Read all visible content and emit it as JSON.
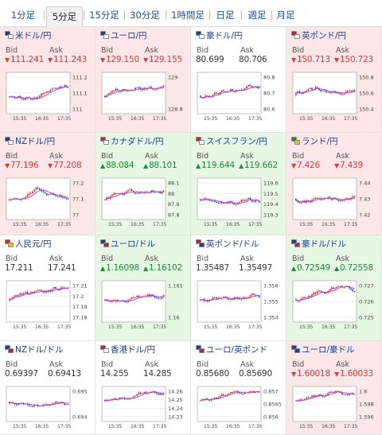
{
  "tabs": [
    "1分足",
    "5分足",
    "15分足",
    "30分足",
    "1時間足",
    "日足",
    "週足",
    "月足"
  ],
  "active_tab": "5分足",
  "labels": {
    "bid": "Bid",
    "ask": "Ask"
  },
  "colors": {
    "up_bg": "#e6f7e4",
    "down_bg": "#fbe7e8",
    "flat_bg": "#ffffff",
    "up_candle": "#e23b3b",
    "down_candle": "#2a56c6",
    "ma_line": "#c03bd0"
  },
  "pairs": [
    {
      "name": "米ドル/円",
      "trend": "down",
      "bid": "111.241",
      "ask": "111.243",
      "flag_colors": [
        "#1c3f8f",
        "#ffffff"
      ],
      "chart_data": {
        "type": "candlestick",
        "y_ticks": [
          "111.2",
          "111.1",
          "111"
        ],
        "x_ticks": [
          "15:35",
          "16:35",
          "17:35"
        ],
        "ylim": [
          110.96,
          111.26
        ]
      }
    },
    {
      "name": "ユーロ/円",
      "trend": "down",
      "bid": "129.150",
      "ask": "129.155",
      "flag_colors": [
        "#1c3f8f",
        "#ffffff"
      ],
      "chart_data": {
        "type": "candlestick",
        "y_ticks": [
          "129",
          "128.8"
        ],
        "x_ticks": [
          "15:35",
          "16:35",
          "17:35"
        ],
        "ylim": [
          128.72,
          129.2
        ]
      }
    },
    {
      "name": "豪ドル/円",
      "trend": "flat",
      "bid": "80.699",
      "ask": "80.706",
      "flag_colors": [
        "#1c3f8f",
        "#ffffff"
      ],
      "chart_data": {
        "type": "candlestick",
        "y_ticks": [
          "80.8",
          "80.7",
          "80.6"
        ],
        "x_ticks": [
          "15:35",
          "16:35",
          "17:35"
        ],
        "ylim": [
          80.56,
          80.84
        ]
      }
    },
    {
      "name": "英ポンド/円",
      "trend": "down",
      "bid": "150.713",
      "ask": "150.723",
      "flag_colors": [
        "#c0243a",
        "#ffffff"
      ],
      "chart_data": {
        "type": "candlestick",
        "y_ticks": [
          "150.8",
          "150.6",
          "150.4"
        ],
        "x_ticks": [
          "15:35",
          "16:35",
          "17:35"
        ],
        "ylim": [
          150.3,
          150.88
        ]
      }
    },
    {
      "name": "NZドル/円",
      "trend": "down",
      "bid": "77.196",
      "ask": "77.208",
      "flag_colors": [
        "#1c3f8f",
        "#ffffff"
      ],
      "arrows": true,
      "chart_data": {
        "type": "candlestick",
        "y_ticks": [
          "77.2",
          "77.1",
          "77"
        ],
        "x_ticks": [
          "15:35",
          "16:35",
          "17:35"
        ],
        "ylim": [
          76.96,
          77.3
        ]
      }
    },
    {
      "name": "カナダドル/円",
      "trend": "up",
      "bid": "88.084",
      "ask": "88.101",
      "flag_colors": [
        "#d0252b",
        "#ffffff"
      ],
      "arrows": true,
      "chart_data": {
        "type": "candlestick",
        "y_ticks": [
          "88.1",
          "88",
          "87.9",
          "87.8"
        ],
        "x_ticks": [
          "15:35",
          "16:35",
          "17:35"
        ],
        "ylim": [
          87.76,
          88.14
        ]
      }
    },
    {
      "name": "スイスフラン/円",
      "trend": "up",
      "bid": "119.644",
      "ask": "119.662",
      "flag_colors": [
        "#d0252b",
        "#ffffff"
      ],
      "arrows": true,
      "chart_data": {
        "type": "candlestick",
        "y_ticks": [
          "119.6",
          "119.5",
          "119.4",
          "119.3"
        ],
        "x_ticks": [
          "15:35",
          "16:35",
          "17:35"
        ],
        "ylim": [
          119.26,
          119.7
        ]
      }
    },
    {
      "name": "ランド/円",
      "trend": "down",
      "bid": "7.426",
      "ask": "7.439",
      "flag_colors": [
        "#1e8c34",
        "#f2c200"
      ],
      "arrows": true,
      "chart_data": {
        "type": "candlestick",
        "y_ticks": [
          "7.44",
          "7.43",
          "7.42"
        ],
        "x_ticks": [
          "15:35",
          "16:35",
          "17:35"
        ],
        "ylim": [
          7.414,
          7.446
        ]
      }
    },
    {
      "name": "人民元/円",
      "trend": "flat",
      "bid": "17.211",
      "ask": "17.241",
      "flag_colors": [
        "#d0252b",
        "#f2c200"
      ],
      "chart_data": {
        "type": "candlestick",
        "y_ticks": [
          "17.21",
          "17.2",
          "17.19",
          "17.18"
        ],
        "x_ticks": [
          "15:35",
          "16:35",
          "17:35"
        ],
        "ylim": [
          17.176,
          17.216
        ]
      }
    },
    {
      "name": "ユーロ/ドル",
      "trend": "up",
      "bid": "1.16098",
      "ask": "1.16102",
      "flag_colors": [
        "#1c3f8f",
        "#c0243a"
      ],
      "arrows": true,
      "chart_data": {
        "type": "candlestick",
        "y_ticks": [
          "1.161",
          "1.16"
        ],
        "x_ticks": [
          "15:35",
          "16:35",
          "17:35"
        ],
        "ylim": [
          1.1594,
          1.1614
        ]
      }
    },
    {
      "name": "英ポンド/ドル",
      "trend": "flat",
      "bid": "1.35487",
      "ask": "1.35497",
      "flag_colors": [
        "#c0243a",
        "#1c3f8f"
      ],
      "chart_data": {
        "type": "candlestick",
        "y_ticks": [
          "1.356",
          "1.355",
          "1.354"
        ],
        "x_ticks": [
          "15:35",
          "16:35",
          "17:35"
        ],
        "ylim": [
          1.3535,
          1.3566
        ]
      }
    },
    {
      "name": "豪ドル/ドル",
      "trend": "up",
      "bid": "0.72549",
      "ask": "0.72558",
      "flag_colors": [
        "#1c3f8f",
        "#c0243a"
      ],
      "arrows": true,
      "chart_data": {
        "type": "candlestick",
        "y_ticks": [
          "0.727",
          "0.726",
          "0.725"
        ],
        "x_ticks": [
          "15:35",
          "16:35",
          "17:35"
        ],
        "ylim": [
          0.7247,
          0.7273
        ]
      }
    },
    {
      "name": "NZドル/ドル",
      "trend": "flat",
      "bid": "0.69397",
      "ask": "0.69413",
      "flag_colors": [
        "#1c3f8f",
        "#c0243a"
      ],
      "chart_data": {
        "type": "candlestick",
        "y_ticks": [
          "0.695",
          "0.694"
        ],
        "x_ticks": [
          "15:35",
          "16:35",
          "17:35"
        ],
        "ylim": [
          0.6935,
          0.6953
        ]
      }
    },
    {
      "name": "香港ドル/円",
      "trend": "flat",
      "bid": "14.255",
      "ask": "14.285",
      "flag_colors": [
        "#d0252b",
        "#ffffff"
      ],
      "chart_data": {
        "type": "candlestick",
        "y_ticks": [
          "14.26",
          "14.25",
          "14.24",
          "14.23"
        ],
        "x_ticks": [
          "15:35",
          "16:35",
          "17:35"
        ],
        "ylim": [
          14.225,
          14.265
        ]
      }
    },
    {
      "name": "ユーロ/英ポンド",
      "trend": "flat",
      "bid": "0.85680",
      "ask": "0.85690",
      "flag_colors": [
        "#1c3f8f",
        "#c0243a"
      ],
      "chart_data": {
        "type": "candlestick",
        "y_ticks": [
          "0.857",
          "0.8565",
          "0.856"
        ],
        "x_ticks": [
          "15:35",
          "16:35",
          "17:35"
        ],
        "ylim": [
          0.8556,
          0.8573
        ]
      }
    },
    {
      "name": "ユーロ/豪ドル",
      "trend": "down",
      "bid": "1.60018",
      "ask": "1.60033",
      "flag_colors": [
        "#1c3f8f",
        "#1c3f8f"
      ],
      "arrows": true,
      "chart_data": {
        "type": "candlestick",
        "y_ticks": [
          "1.6",
          "1.598",
          "1.596"
        ],
        "x_ticks": [
          "15:35",
          "16:35",
          "17:35"
        ],
        "ylim": [
          1.5952,
          1.6012
        ]
      }
    }
  ]
}
